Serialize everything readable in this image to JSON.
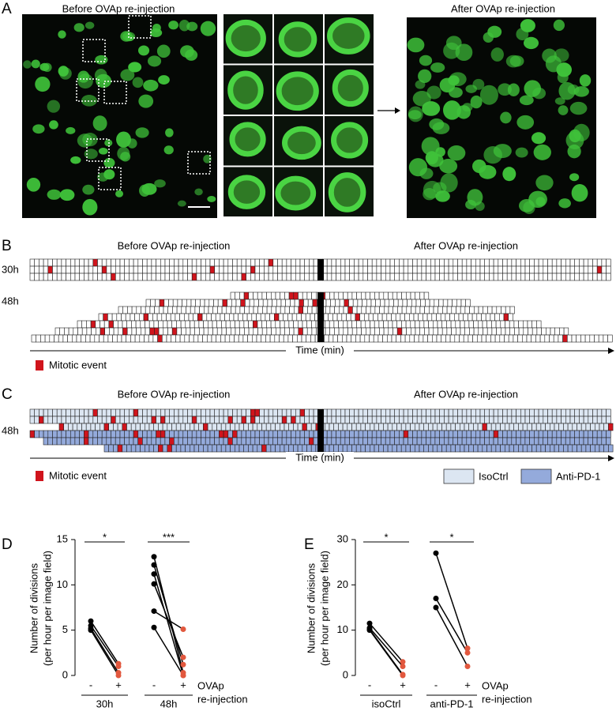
{
  "panels": {
    "A": {
      "label": "A",
      "left_title": "Before OVAp re-injection",
      "right_title": "After OVAp re-injection"
    },
    "B": {
      "label": "B",
      "before": "Before OVAp re-injection",
      "after": "After OVAp re-injection",
      "rows": [
        "30h",
        "48h"
      ],
      "axis": "Time (min)",
      "legend": "Mitotic event"
    },
    "C": {
      "label": "C",
      "before": "Before OVAp re-injection",
      "after": "After OVAp re-injection",
      "rows": [
        "48h"
      ],
      "axis": "Time (min)",
      "legend": "Mitotic event",
      "groups": [
        "IsoCtrl",
        "Anti-PD-1"
      ]
    }
  },
  "chart_data": [
    {
      "type": "paired",
      "label": "D",
      "ylabel": [
        "Number of divisions",
        "(per hour per image field)"
      ],
      "categories": [
        "-",
        "+"
      ],
      "x_note": [
        "OVAp",
        "re-injection"
      ],
      "ylim": [
        0,
        15
      ],
      "yticks": [
        0,
        5,
        10,
        15
      ],
      "colors": [
        "#000000",
        "#e2583e"
      ],
      "groups": [
        {
          "name": "30h",
          "significance": "*",
          "pairs": [
            [
              6.0,
              1.3
            ],
            [
              5.5,
              1.0
            ],
            [
              5.2,
              0.3
            ],
            [
              5.0,
              0.0
            ]
          ]
        },
        {
          "name": "48h",
          "significance": "***",
          "pairs": [
            [
              13.1,
              0.3
            ],
            [
              12.2,
              1.2
            ],
            [
              11.2,
              0.0
            ],
            [
              10.1,
              2.0
            ],
            [
              7.1,
              5.1
            ],
            [
              5.3,
              0.0
            ]
          ]
        }
      ]
    },
    {
      "type": "paired",
      "label": "E",
      "ylabel": [
        "Number of divisions",
        "(per hour per image field)"
      ],
      "categories": [
        "-",
        "+"
      ],
      "x_note": [
        "OVAp",
        "re-injection"
      ],
      "ylim": [
        0,
        30
      ],
      "yticks": [
        0,
        10,
        20,
        30
      ],
      "colors": [
        "#000000",
        "#e2583e"
      ],
      "groups": [
        {
          "name": "isoCtrl",
          "significance": "*",
          "pairs": [
            [
              11.5,
              3.0
            ],
            [
              10.5,
              2.0
            ],
            [
              10.2,
              0.2
            ],
            [
              10.0,
              0.0
            ]
          ]
        },
        {
          "name": "anti-PD-1",
          "significance": "*",
          "pairs": [
            [
              27.0,
              6.0
            ],
            [
              17.0,
              5.0
            ],
            [
              15.0,
              2.0
            ]
          ]
        }
      ]
    }
  ]
}
